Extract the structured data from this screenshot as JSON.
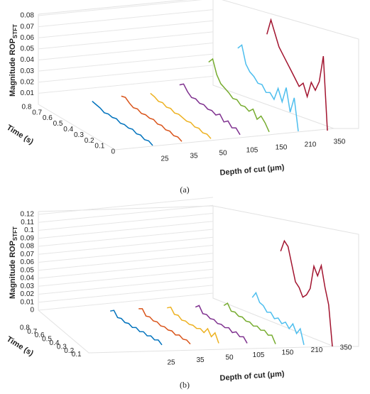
{
  "chart_data": [
    {
      "type": "line3d",
      "caption": "(a)",
      "zlabel": "Magnitude ROP",
      "zlabel_sub": "STFT",
      "ylabel": "Time (s)",
      "xlabel": "Depth of cut (μm)",
      "categories": [
        "25",
        "35",
        "50",
        "105",
        "150",
        "210",
        "350"
      ],
      "x": [
        0,
        0.04,
        0.08,
        0.12,
        0.16,
        0.2,
        0.24,
        0.28,
        0.32,
        0.36,
        0.4,
        0.44,
        0.48,
        0.52,
        0.56,
        0.6
      ],
      "zlim": [
        0,
        0.08
      ],
      "zticks": [
        0.01,
        0.02,
        0.03,
        0.04,
        0.05,
        0.06,
        0.07,
        0.08
      ],
      "tlim": [
        0,
        0.8
      ],
      "tticks": [
        0,
        0.1,
        0.2,
        0.3,
        0.4,
        0.5,
        0.6,
        0.7,
        0.8
      ],
      "series": [
        {
          "color": "#0072bd",
          "values": [
            0.002,
            0.004,
            0.003,
            0.005,
            0.004,
            0.006,
            0.005,
            0.006,
            0.005,
            0.007,
            0.006,
            0.007,
            0.006,
            0.008,
            0.009,
            0.01
          ]
        },
        {
          "color": "#d95319",
          "values": [
            0.003,
            0.005,
            0.004,
            0.006,
            0.005,
            0.007,
            0.006,
            0.008,
            0.007,
            0.008,
            0.007,
            0.009,
            0.008,
            0.01,
            0.013,
            0.012
          ]
        },
        {
          "color": "#edb120",
          "values": [
            0.003,
            0.005,
            0.004,
            0.006,
            0.005,
            0.007,
            0.006,
            0.007,
            0.008,
            0.007,
            0.009,
            0.008,
            0.01,
            0.009,
            0.011,
            0.012
          ]
        },
        {
          "color": "#7e2f8e",
          "values": [
            0.004,
            0.008,
            0.006,
            0.01,
            0.007,
            0.012,
            0.009,
            0.011,
            0.01,
            0.012,
            0.011,
            0.013,
            0.012,
            0.015,
            0.02,
            0.017
          ]
        },
        {
          "color": "#77ac30",
          "values": [
            0.004,
            0.01,
            0.014,
            0.009,
            0.016,
            0.012,
            0.014,
            0.013,
            0.016,
            0.015,
            0.018,
            0.02,
            0.022,
            0.028,
            0.04,
            0.035
          ]
        },
        {
          "color": "#4dbeee",
          "values": [
            0.002,
            0.03,
            0.015,
            0.035,
            0.02,
            0.03,
            0.018,
            0.022,
            0.02,
            0.025,
            0.024,
            0.028,
            0.03,
            0.035,
            0.05,
            0.045
          ]
        },
        {
          "color": "#a2142f",
          "values": [
            0,
            0.065,
            0.04,
            0.03,
            0.035,
            0.02,
            0.03,
            0.025,
            0.03,
            0.035,
            0.04,
            0.045,
            0.05,
            0.06,
            0.07,
            0.055
          ]
        }
      ]
    },
    {
      "type": "line3d",
      "caption": "(b)",
      "zlabel": "Magnitude ROP",
      "zlabel_sub": "STFT",
      "ylabel": "Time (s)",
      "xlabel": "Depth of cut (μm)",
      "categories": [
        "25",
        "35",
        "50",
        "105",
        "150",
        "210",
        "350"
      ],
      "x": [
        0,
        0.05,
        0.1,
        0.15,
        0.2,
        0.25,
        0.3,
        0.35,
        0.4,
        0.45,
        0.5,
        0.55,
        0.6,
        0.65,
        0.7
      ],
      "zlim": [
        0,
        0.12
      ],
      "zticks": [
        0,
        0.01,
        0.02,
        0.03,
        0.04,
        0.05,
        0.06,
        0.07,
        0.08,
        0.09,
        0.1,
        0.11,
        0.12
      ],
      "tlim": [
        0,
        0.8
      ],
      "tticks": [
        0.1,
        0.2,
        0.3,
        0.4,
        0.5,
        0.6,
        0.7,
        0.8
      ],
      "series": [
        {
          "color": "#0072bd",
          "values": [
            0.002,
            0.006,
            0.004,
            0.007,
            0.005,
            0.008,
            0.006,
            0.009,
            0.007,
            0.01,
            0.009,
            0.012,
            0.011,
            0.018,
            0.015
          ]
        },
        {
          "color": "#d95319",
          "values": [
            0.003,
            0.006,
            0.005,
            0.008,
            0.006,
            0.009,
            0.008,
            0.01,
            0.009,
            0.012,
            0.011,
            0.014,
            0.013,
            0.02,
            0.018
          ]
        },
        {
          "color": "#edb120",
          "values": [
            0.004,
            0.015,
            0.008,
            0.016,
            0.009,
            0.012,
            0.01,
            0.012,
            0.011,
            0.013,
            0.012,
            0.016,
            0.015,
            0.022,
            0.019
          ]
        },
        {
          "color": "#7e2f8e",
          "values": [
            0.004,
            0.01,
            0.008,
            0.012,
            0.009,
            0.013,
            0.011,
            0.013,
            0.012,
            0.015,
            0.014,
            0.017,
            0.016,
            0.024,
            0.02
          ]
        },
        {
          "color": "#77ac30",
          "values": [
            0.003,
            0.012,
            0.01,
            0.014,
            0.012,
            0.015,
            0.013,
            0.016,
            0.015,
            0.018,
            0.017,
            0.02,
            0.019,
            0.027,
            0.022
          ]
        },
        {
          "color": "#4dbeee",
          "values": [
            0.002,
            0.02,
            0.012,
            0.022,
            0.014,
            0.02,
            0.016,
            0.021,
            0.018,
            0.024,
            0.022,
            0.028,
            0.03,
            0.04,
            0.032
          ]
        },
        {
          "color": "#a2142f",
          "values": [
            0,
            0.05,
            0.07,
            0.095,
            0.08,
            0.09,
            0.06,
            0.05,
            0.045,
            0.055,
            0.06,
            0.08,
            0.1,
            0.105,
            0.09
          ]
        }
      ]
    }
  ]
}
